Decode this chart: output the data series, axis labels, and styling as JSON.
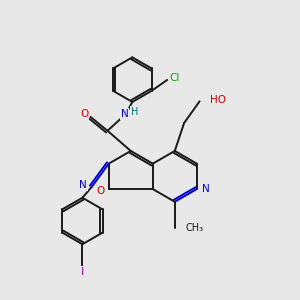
{
  "bg_color": "#e8e8e8",
  "bond_color": "#1a1a1a",
  "atom_colors": {
    "N": "#0000cc",
    "O": "#cc0000",
    "Cl": "#00aa00",
    "I": "#990099",
    "H": "#007777",
    "C": "#1a1a1a"
  },
  "lw": 1.4,
  "dbo": 0.07
}
